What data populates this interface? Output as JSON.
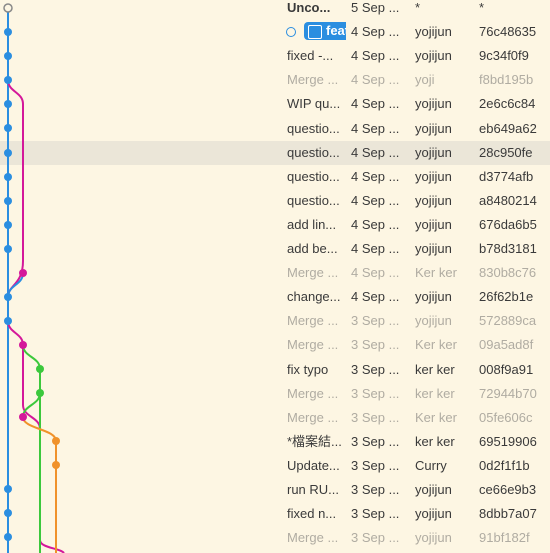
{
  "commits": [
    [
      "Unco...",
      "5 Sep ...",
      "*",
      "*"
    ],
    [
      "feat",
      "4 Sep ...",
      "yojijun",
      "76c48635"
    ],
    [
      "fixed -...",
      "4 Sep ...",
      "yojijun",
      "9c34f0f9"
    ],
    [
      "Merge ...",
      "4 Sep ...",
      "yoji",
      "f8bd195b"
    ],
    [
      "WIP qu...",
      "4 Sep ...",
      "yojijun",
      "2e6c6c84"
    ],
    [
      "questio...",
      "4 Sep ...",
      "yojijun",
      "eb649a62"
    ],
    [
      "questio...",
      "4 Sep ...",
      "yojijun",
      "28c950fe"
    ],
    [
      "questio...",
      "4 Sep ...",
      "yojijun",
      "d3774afb"
    ],
    [
      "questio...",
      "4 Sep ...",
      "yojijun",
      "a8480214"
    ],
    [
      "add lin...",
      "4 Sep ...",
      "yojijun",
      "676da6b5"
    ],
    [
      "add be...",
      "4 Sep ...",
      "yojijun",
      "b78d3181"
    ],
    [
      "Merge ...",
      "4 Sep ...",
      "Ker ker",
      "830b8c76"
    ],
    [
      "change...",
      "4 Sep ...",
      "yojijun",
      "26f62b1e"
    ],
    [
      "Merge ...",
      "3 Sep ...",
      "yojijun",
      "572889ca"
    ],
    [
      "Merge ...",
      "3 Sep ...",
      "Ker ker",
      "09a5ad8f"
    ],
    [
      "fix typo",
      "3 Sep ...",
      "ker ker",
      "008f9a91"
    ],
    [
      "Merge ...",
      "3 Sep ...",
      "ker ker",
      "72944b70"
    ],
    [
      "Merge ...",
      "3 Sep ...",
      "Ker ker",
      "05fe606c"
    ],
    [
      "*檔案結...",
      "3 Sep ...",
      "ker ker",
      "69519906"
    ],
    [
      "Update...",
      "3 Sep ...",
      "Curry",
      "0d2f1f1b"
    ],
    [
      "run RU...",
      "3 Sep ...",
      "yojijun",
      "ce66e9b3"
    ],
    [
      "fixed n...",
      "3 Sep ...",
      "yojijun",
      "8dbb7a07"
    ],
    [
      "Merge ...",
      "3 Sep ...",
      "yojijun",
      "91bf182f"
    ]
  ]
}
